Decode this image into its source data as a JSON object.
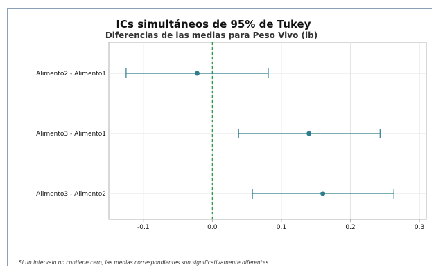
{
  "chart_data": {
    "type": "interval",
    "title": "ICs simultáneos de 95% de Tukey",
    "subtitle": "Diferencias de las medias para Peso Vivo (lb)",
    "categories": [
      "Alimento2 - Alimento1",
      "Alimento3 - Alimento1",
      "Alimento3 - Alimento2"
    ],
    "estimates": [
      -0.022,
      0.14,
      0.16
    ],
    "lower": [
      -0.125,
      0.038,
      0.058
    ],
    "upper": [
      0.081,
      0.243,
      0.263
    ],
    "xlim": [
      -0.15,
      0.31
    ],
    "xticks": [
      -0.1,
      0.0,
      0.1,
      0.2,
      0.3
    ],
    "xtick_labels": [
      "-0.1",
      "0.0",
      "0.1",
      "0.2",
      "0.3"
    ],
    "reference_line": 0,
    "grid": true,
    "colors": {
      "interval": "#2e7d8c",
      "reference": "#2e9e4a",
      "grid": "#e3e3e3",
      "axis": "#b0b0b0"
    }
  },
  "footnote": "Si un intervalo no contiene cero, las medias correspondientes son significativamente diferentes."
}
